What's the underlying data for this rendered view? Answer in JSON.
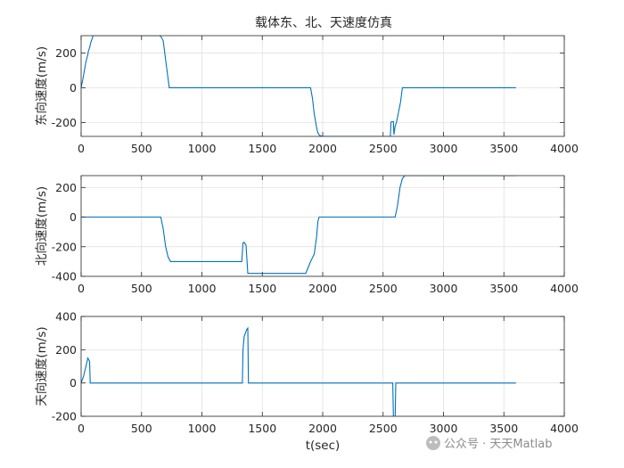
{
  "watermark": {
    "text": "公众号 · 天天Matlab",
    "icon": "wechat-official-account-icon"
  },
  "colors": {
    "line": "#0072BD",
    "grid": "#dcdcdc",
    "axis": "#262626"
  },
  "chart_data": [
    {
      "type": "line",
      "title": "载体东、北、天速度仿真",
      "ylabel": "东向速度(m/s)",
      "xlabel": "",
      "xlim": [
        0,
        4000
      ],
      "ylim": [
        -280,
        300
      ],
      "xticks": [
        0,
        500,
        1000,
        1500,
        2000,
        2500,
        3000,
        3500,
        4000
      ],
      "yticks": [
        -200,
        0,
        200
      ],
      "grid": true,
      "series": [
        {
          "x": [
            0,
            15,
            40,
            55,
            60,
            70,
            80,
            100,
            650,
            665,
            680,
            700,
            730,
            1900,
            1915,
            1930,
            1950,
            1960,
            1975,
            2000,
            2560,
            2565,
            2570,
            2585,
            2590,
            2600,
            2610,
            2625,
            2645,
            2660,
            3600
          ],
          "y": [
            0,
            50,
            150,
            190,
            210,
            230,
            260,
            300,
            300,
            290,
            270,
            160,
            0,
            0,
            -60,
            -150,
            -230,
            -260,
            -275,
            -280,
            -280,
            -200,
            -195,
            -195,
            -270,
            -220,
            -200,
            -150,
            -80,
            0,
            0
          ]
        }
      ]
    },
    {
      "type": "line",
      "title": "",
      "ylabel": "北向速度(m/s)",
      "xlabel": "",
      "xlim": [
        0,
        4000
      ],
      "ylim": [
        -400,
        280
      ],
      "xticks": [
        0,
        500,
        1000,
        1500,
        2000,
        2500,
        3000,
        3500,
        4000
      ],
      "yticks": [
        -400,
        -200,
        0,
        200
      ],
      "grid": true,
      "series": [
        {
          "x": [
            0,
            660,
            680,
            700,
            720,
            740,
            1330,
            1340,
            1350,
            1365,
            1380,
            1860,
            1880,
            1900,
            1930,
            1950,
            1960,
            1970,
            2600,
            2620,
            2640,
            2660,
            2680,
            3600
          ],
          "y": [
            0,
            0,
            -80,
            -200,
            -270,
            -300,
            -300,
            -175,
            -170,
            -190,
            -380,
            -380,
            -340,
            -300,
            -250,
            -130,
            -30,
            0,
            0,
            80,
            200,
            260,
            280,
            280
          ]
        }
      ]
    },
    {
      "type": "line",
      "title": "",
      "ylabel": "天向速度(m/s)",
      "xlabel": "t(sec)",
      "xlim": [
        0,
        4000
      ],
      "ylim": [
        -200,
        400
      ],
      "xticks": [
        0,
        500,
        1000,
        1500,
        2000,
        2500,
        3000,
        3500,
        4000
      ],
      "yticks": [
        -200,
        0,
        200,
        400
      ],
      "grid": true,
      "series": [
        {
          "x": [
            0,
            20,
            40,
            55,
            70,
            75,
            1335,
            1340,
            1350,
            1360,
            1365,
            1370,
            1380,
            1385,
            2580,
            2585,
            2590,
            2595,
            2600,
            2605,
            3600
          ],
          "y": [
            0,
            40,
            100,
            150,
            130,
            0,
            0,
            200,
            280,
            300,
            310,
            320,
            330,
            0,
            0,
            -200,
            -250,
            -220,
            -200,
            0,
            0
          ]
        }
      ]
    }
  ]
}
